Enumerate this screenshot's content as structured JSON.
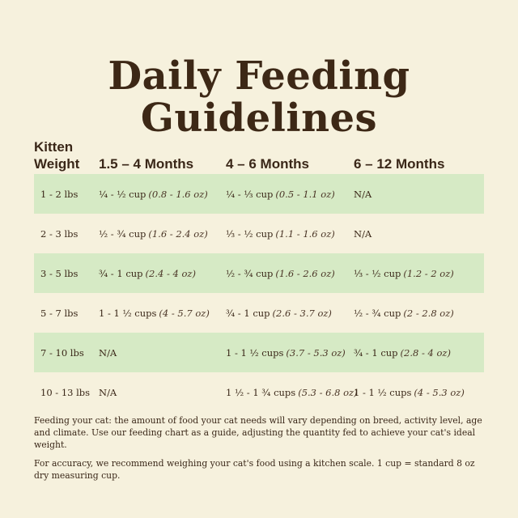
{
  "title": {
    "line1": "Daily Feeding",
    "line2": "Guidelines"
  },
  "table": {
    "headers": [
      "Kitten Weight",
      "1.5 – 4 Months",
      "4 – 6 Months",
      "6 – 12 Months"
    ],
    "rows": [
      {
        "weight": "1 - 2 lbs",
        "c1": {
          "cup": "¼ - ½ cup",
          "oz": "(0.8 - 1.6 oz)"
        },
        "c2": {
          "cup": "¼ - ⅓ cup",
          "oz": "(0.5 - 1.1 oz)"
        },
        "c3": {
          "cup": "N/A",
          "oz": ""
        }
      },
      {
        "weight": "2 - 3 lbs",
        "c1": {
          "cup": "½ - ¾ cup",
          "oz": "(1.6 - 2.4 oz)"
        },
        "c2": {
          "cup": "⅓ - ½ cup",
          "oz": "(1.1 - 1.6 oz)"
        },
        "c3": {
          "cup": "N/A",
          "oz": ""
        }
      },
      {
        "weight": "3 - 5 lbs",
        "c1": {
          "cup": "¾ - 1 cup",
          "oz": "(2.4 - 4 oz)"
        },
        "c2": {
          "cup": "½ - ¾ cup",
          "oz": "(1.6 - 2.6 oz)"
        },
        "c3": {
          "cup": "⅓ - ½ cup",
          "oz": "(1.2 - 2 oz)"
        }
      },
      {
        "weight": "5 - 7 lbs",
        "c1": {
          "cup": "1 - 1 ½ cups",
          "oz": "(4 - 5.7 oz)"
        },
        "c2": {
          "cup": "¾ - 1 cup",
          "oz": "(2.6 - 3.7 oz)"
        },
        "c3": {
          "cup": "½ - ¾ cup",
          "oz": "(2 - 2.8 oz)"
        }
      },
      {
        "weight": "7 - 10 lbs",
        "c1": {
          "cup": "N/A",
          "oz": ""
        },
        "c2": {
          "cup": "1 - 1 ½ cups",
          "oz": "(3.7 - 5.3 oz)"
        },
        "c3": {
          "cup": "¾ - 1 cup",
          "oz": "(2.8 - 4 oz)"
        }
      },
      {
        "weight": "10 - 13 lbs",
        "c1": {
          "cup": "N/A",
          "oz": ""
        },
        "c2": {
          "cup": "1 ½ - 1 ¾ cups",
          "oz": "(5.3 - 6.8 oz)"
        },
        "c3": {
          "cup": "1 - 1 ½ cups",
          "oz": "(4 - 5.3 oz)"
        }
      }
    ]
  },
  "notes": {
    "p1": "Feeding your cat: the amount of food your cat needs will vary depending on breed, activity level, age and climate. Use our feeding chart as a guide, adjusting the quantity fed to achieve your cat's ideal weight.",
    "p2": "For accuracy, we recommend weighing your cat's food using a kitchen scale. 1 cup = standard 8 oz dry measuring cup."
  },
  "colors": {
    "background": "#f6f1dd",
    "row_shade": "#d6eac5",
    "text": "#3a2718"
  }
}
